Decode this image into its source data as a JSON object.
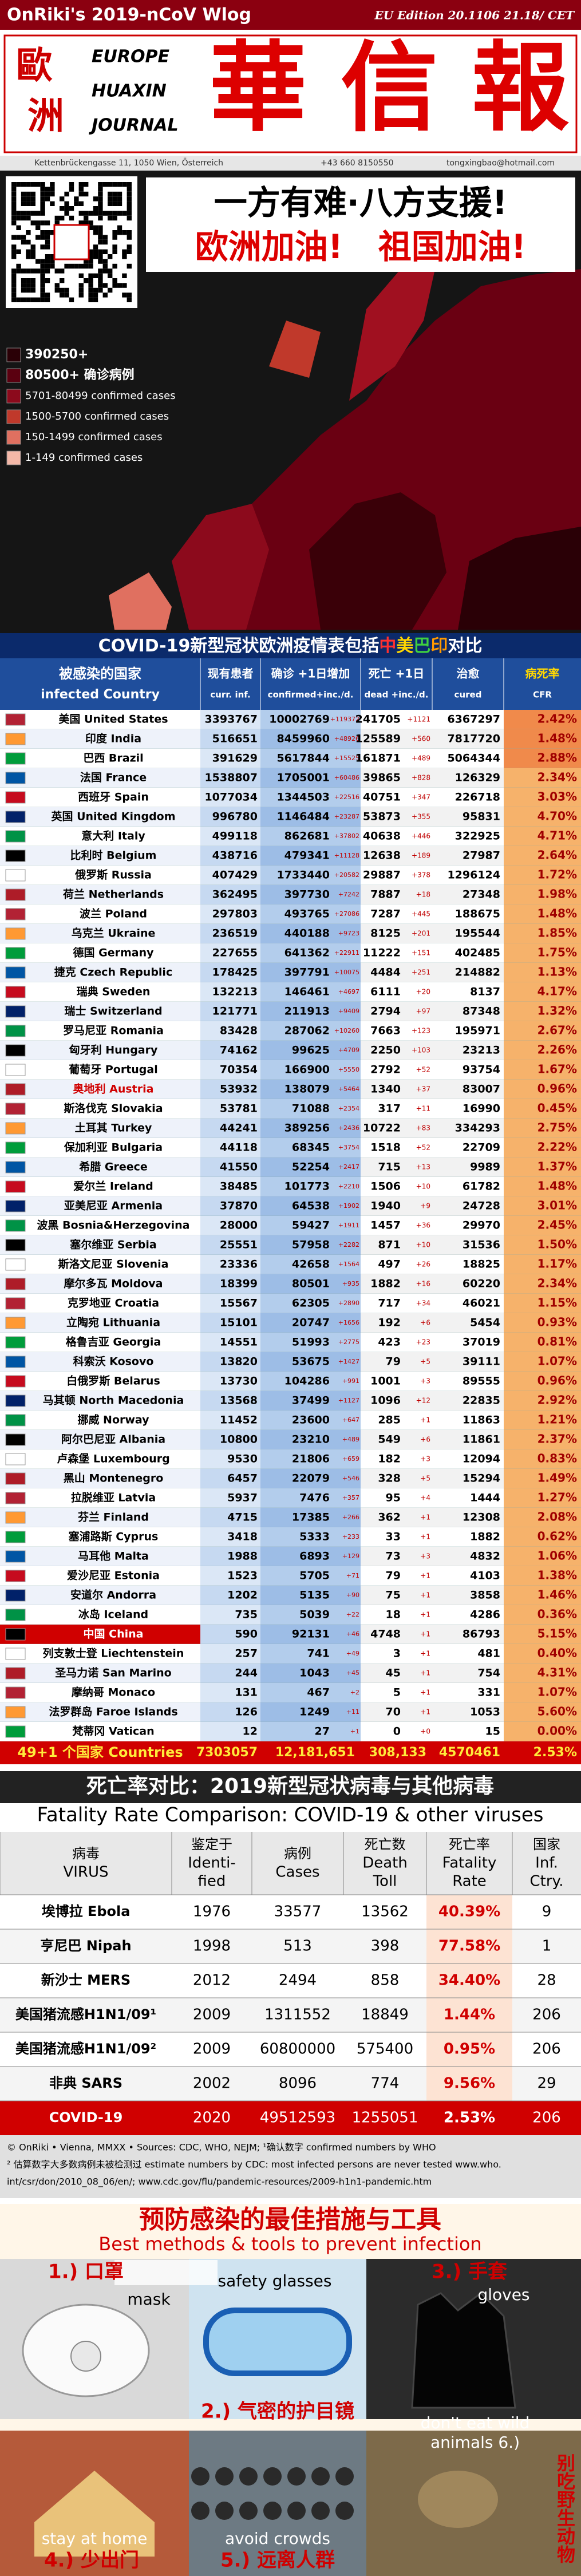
{
  "header": {
    "title": "OnRiki's 2019-nCoV Wlog",
    "edition": "EU Edition 20.1106 21.18/ CET"
  },
  "masthead": {
    "left": [
      "歐",
      "洲"
    ],
    "lines": [
      "EUROPE",
      "HUAXIN",
      "JOURNAL"
    ],
    "name": "華 信 報",
    "address": "Kettenbrückengasse 11, 1050 Wien, Österreich",
    "phone": "+43 660 8150550",
    "email": "tongxingbao@hotmail.com"
  },
  "map": {
    "slogan1": "一方有难·八方支援!",
    "slogan2a": "欧洲加油!",
    "slogan2b": "祖国加油!",
    "legend": [
      {
        "label": "390250+",
        "color": "#2a0006"
      },
      {
        "label": "80500+ 确诊病例",
        "color": "#5a0010"
      },
      {
        "label": "5701-80499 confirmed cases",
        "color": "#8c0a1c"
      },
      {
        "label": "1500-5700 confirmed cases",
        "color": "#c0392b"
      },
      {
        "label": "150-1499 confirmed cases",
        "color": "#e07060"
      },
      {
        "label": "1-149 confirmed cases",
        "color": "#f4b8a8"
      }
    ]
  },
  "table": {
    "title": [
      {
        "text": "COVID-19",
        "color": "#ffffff"
      },
      {
        "text": "新型冠状欧洲疫情表包括",
        "color": "#ffffff"
      },
      {
        "text": "中",
        "color": "#ff3030"
      },
      {
        "text": "美",
        "color": "#ffd700"
      },
      {
        "text": "巴",
        "color": "#40d040"
      },
      {
        "text": "印",
        "color": "#ff9900"
      },
      {
        "text": "对比",
        "color": "#ffffff"
      }
    ],
    "headers": [
      [
        "被感染的国家",
        "infected Country"
      ],
      [
        "现有患者",
        "curr. inf."
      ],
      [
        "确诊 +1日增加",
        "confirmed+inc./d."
      ],
      [
        "死亡 +1日",
        "dead +inc./d."
      ],
      [
        "治愈",
        "cured"
      ],
      [
        "病死率",
        "CFR"
      ]
    ],
    "rows": [
      [
        "美国 United States",
        "3393767",
        "10002769",
        "+119372",
        "241705",
        "+1121",
        "6367297",
        "2.42%"
      ],
      [
        "印度 India",
        "516651",
        "8459960",
        "+48926",
        "125589",
        "+560",
        "7817720",
        "1.48%"
      ],
      [
        "巴西 Brazil",
        "391629",
        "5617844",
        "+15525",
        "161871",
        "+489",
        "5064344",
        "2.88%"
      ],
      [
        "法国 France",
        "1538807",
        "1705001",
        "+60486",
        "39865",
        "+828",
        "126329",
        "2.34%"
      ],
      [
        "西班牙 Spain",
        "1077034",
        "1344503",
        "+22516",
        "40751",
        "+347",
        "226718",
        "3.03%"
      ],
      [
        "英国 United Kingdom",
        "996780",
        "1146484",
        "+23287",
        "53873",
        "+355",
        "95831",
        "4.70%"
      ],
      [
        "意大利 Italy",
        "499118",
        "862681",
        "+37802",
        "40638",
        "+446",
        "322925",
        "4.71%"
      ],
      [
        "比利时 Belgium",
        "438716",
        "479341",
        "+11128",
        "12638",
        "+189",
        "27987",
        "2.64%"
      ],
      [
        "俄罗斯 Russia",
        "407429",
        "1733440",
        "+20582",
        "29887",
        "+378",
        "1296124",
        "1.72%"
      ],
      [
        "荷兰 Netherlands",
        "362495",
        "397730",
        "+7242",
        "7887",
        "+18",
        "27348",
        "1.98%"
      ],
      [
        "波兰 Poland",
        "297803",
        "493765",
        "+27086",
        "7287",
        "+445",
        "188675",
        "1.48%"
      ],
      [
        "乌克兰 Ukraine",
        "236519",
        "440188",
        "+9723",
        "8125",
        "+201",
        "195544",
        "1.85%"
      ],
      [
        "德国 Germany",
        "227655",
        "641362",
        "+22911",
        "11222",
        "+151",
        "402485",
        "1.75%"
      ],
      [
        "捷克 Czech Republic",
        "178425",
        "397791",
        "+10075",
        "4484",
        "+251",
        "214882",
        "1.13%"
      ],
      [
        "瑞典 Sweden",
        "132213",
        "146461",
        "+4697",
        "6111",
        "+20",
        "8137",
        "4.17%"
      ],
      [
        "瑞士 Switzerland",
        "121771",
        "211913",
        "+9409",
        "2794",
        "+97",
        "87348",
        "1.32%"
      ],
      [
        "罗马尼亚 Romania",
        "83428",
        "287062",
        "+10260",
        "7663",
        "+123",
        "195971",
        "2.67%"
      ],
      [
        "匈牙利 Hungary",
        "74162",
        "99625",
        "+4709",
        "2250",
        "+103",
        "23213",
        "2.26%"
      ],
      [
        "葡萄牙 Portugal",
        "70354",
        "166900",
        "+5550",
        "2792",
        "+52",
        "93754",
        "1.67%"
      ],
      [
        "奥地利 Austria",
        "53932",
        "138079",
        "+5464",
        "1340",
        "+37",
        "83007",
        "0.96%"
      ],
      [
        "斯洛伐克 Slovakia",
        "53781",
        "71088",
        "+2354",
        "317",
        "+11",
        "16990",
        "0.45%"
      ],
      [
        "土耳其 Turkey",
        "44241",
        "389256",
        "+2436",
        "10722",
        "+83",
        "334293",
        "2.75%"
      ],
      [
        "保加利亚 Bulgaria",
        "44118",
        "68345",
        "+3754",
        "1518",
        "+52",
        "22709",
        "2.22%"
      ],
      [
        "希腊 Greece",
        "41550",
        "52254",
        "+2417",
        "715",
        "+13",
        "9989",
        "1.37%"
      ],
      [
        "爱尔兰 Ireland",
        "38485",
        "101773",
        "+2210",
        "1506",
        "+10",
        "61782",
        "1.48%"
      ],
      [
        "亚美尼亚 Armenia",
        "37870",
        "64538",
        "+1902",
        "1940",
        "+9",
        "24728",
        "3.01%"
      ],
      [
        "波黑 Bosnia&Herzegovina",
        "28000",
        "59427",
        "+1911",
        "1457",
        "+36",
        "29970",
        "2.45%"
      ],
      [
        "塞尔维亚 Serbia",
        "25551",
        "57958",
        "+2282",
        "871",
        "+10",
        "31536",
        "1.50%"
      ],
      [
        "斯洛文尼亚 Slovenia",
        "23336",
        "42658",
        "+1564",
        "497",
        "+26",
        "18825",
        "1.17%"
      ],
      [
        "摩尔多瓦 Moldova",
        "18399",
        "80501",
        "+935",
        "1882",
        "+16",
        "60220",
        "2.34%"
      ],
      [
        "克罗地亚 Croatia",
        "15567",
        "62305",
        "+2890",
        "717",
        "+34",
        "46021",
        "1.15%"
      ],
      [
        "立陶宛 Lithuania",
        "15101",
        "20747",
        "+1656",
        "192",
        "+6",
        "5454",
        "0.93%"
      ],
      [
        "格鲁吉亚 Georgia",
        "14551",
        "51993",
        "+2775",
        "423",
        "+23",
        "37019",
        "0.81%"
      ],
      [
        "科索沃 Kosovo",
        "13820",
        "53675",
        "+1427",
        "79",
        "+5",
        "39111",
        "1.07%"
      ],
      [
        "白俄罗斯 Belarus",
        "13730",
        "104286",
        "+991",
        "1001",
        "+3",
        "89555",
        "0.96%"
      ],
      [
        "马其顿 North Macedonia",
        "13568",
        "37499",
        "+1127",
        "1096",
        "+12",
        "22835",
        "2.92%"
      ],
      [
        "挪威 Norway",
        "11452",
        "23600",
        "+647",
        "285",
        "+1",
        "11863",
        "1.21%"
      ],
      [
        "阿尔巴尼亚 Albania",
        "10800",
        "23210",
        "+489",
        "549",
        "+6",
        "11861",
        "2.37%"
      ],
      [
        "卢森堡 Luxembourg",
        "9530",
        "21806",
        "+659",
        "182",
        "+3",
        "12094",
        "0.83%"
      ],
      [
        "黑山 Montenegro",
        "6457",
        "22079",
        "+546",
        "328",
        "+5",
        "15294",
        "1.49%"
      ],
      [
        "拉脱维亚 Latvia",
        "5937",
        "7476",
        "+357",
        "95",
        "+4",
        "1444",
        "1.27%"
      ],
      [
        "芬兰 Finland",
        "4715",
        "17385",
        "+266",
        "362",
        "+1",
        "12308",
        "2.08%"
      ],
      [
        "塞浦路斯 Cyprus",
        "3418",
        "5333",
        "+233",
        "33",
        "+1",
        "1882",
        "0.62%"
      ],
      [
        "马耳他 Malta",
        "1988",
        "6893",
        "+129",
        "73",
        "+3",
        "4832",
        "1.06%"
      ],
      [
        "爱沙尼亚 Estonia",
        "1523",
        "5705",
        "+71",
        "79",
        "+1",
        "4103",
        "1.38%"
      ],
      [
        "安道尔 Andorra",
        "1202",
        "5135",
        "+90",
        "75",
        "+1",
        "3858",
        "1.46%"
      ],
      [
        "冰岛 Iceland",
        "735",
        "5039",
        "+22",
        "18",
        "+1",
        "4286",
        "0.36%"
      ],
      [
        "中国 China",
        "590",
        "92131",
        "+46",
        "4748",
        "+1",
        "86793",
        "5.15%"
      ],
      [
        "列支敦士登 Liechtenstein",
        "257",
        "741",
        "+49",
        "3",
        "+1",
        "481",
        "0.40%"
      ],
      [
        "圣马力诺 San Marino",
        "244",
        "1043",
        "+45",
        "45",
        "+1",
        "754",
        "4.31%"
      ],
      [
        "摩纳哥 Monaco",
        "131",
        "467",
        "+2",
        "5",
        "+1",
        "331",
        "1.07%"
      ],
      [
        "法罗群岛 Faroe Islands",
        "126",
        "1249",
        "+11",
        "70",
        "+1",
        "1053",
        "5.60%"
      ],
      [
        "梵蒂冈 Vatican",
        "12",
        "27",
        "+1",
        "0",
        "+0",
        "15",
        "0.00%"
      ]
    ],
    "total": [
      "49+1 个国家 Countries",
      "7303057",
      "12,181,651",
      "308,133",
      "4570461",
      "2.53%"
    ]
  },
  "comparison": {
    "title": "死亡率对比：2019新型冠状病毒与其他病毒",
    "subtitle": "Fatality Rate Comparison: COVID-19 & other viruses",
    "headers": [
      [
        "病毒",
        "VIRUS"
      ],
      [
        "鉴定于",
        "Identi-",
        "fied"
      ],
      [
        "病例",
        "Cases"
      ],
      [
        "死亡数",
        "Death",
        "Toll"
      ],
      [
        "死亡率",
        "Fatality",
        "Rate"
      ],
      [
        "国家",
        "Inf.",
        "Ctry."
      ]
    ],
    "rows": [
      [
        "埃博拉 Ebola",
        "1976",
        "33577",
        "13562",
        "40.39%",
        "9"
      ],
      [
        "亨尼巴 Nipah",
        "1998",
        "513",
        "398",
        "77.58%",
        "1"
      ],
      [
        "新沙士 MERS",
        "2012",
        "2494",
        "858",
        "34.40%",
        "28"
      ],
      [
        "美国猪流感H1N1/09¹",
        "2009",
        "1311552",
        "18849",
        "1.44%",
        "206"
      ],
      [
        "美国猪流感H1N1/09²",
        "2009",
        "60800000",
        "575400",
        "0.95%",
        "206"
      ],
      [
        "非典 SARS",
        "2002",
        "8096",
        "774",
        "9.56%",
        "29"
      ],
      [
        "COVID-19",
        "2020",
        "49512593",
        "1255051",
        "2.53%",
        "206"
      ]
    ],
    "notes": [
      "© OnRiki • Vienna, MMXX • Sources: CDC, WHO, NEJM; ¹确认数字 confirmed numbers by WHO",
      "² 估算数字大多数病例未被检测过 estimate numbers by CDC: most infected persons are never tested www.who.",
      "int/csr/don/2010_08_06/en/; www.cdc.gov/flu/pandemic-resources/2009-h1n1-pandemic.htm"
    ]
  },
  "prevention": {
    "title": "预防感染的最佳措施与工具",
    "subtitle": "Best methods & tools to prevent infection",
    "labels": [
      "1.) 口罩",
      "mask",
      "safety glasses",
      "2.) 气密的护目镜",
      "3.) 手套",
      "gloves",
      "don't eat wild",
      "animals 6.)",
      "别吃野生动物",
      "stay at home",
      "4.) 少出门",
      "avoid crowds",
      "5.) 远离人群"
    ]
  }
}
